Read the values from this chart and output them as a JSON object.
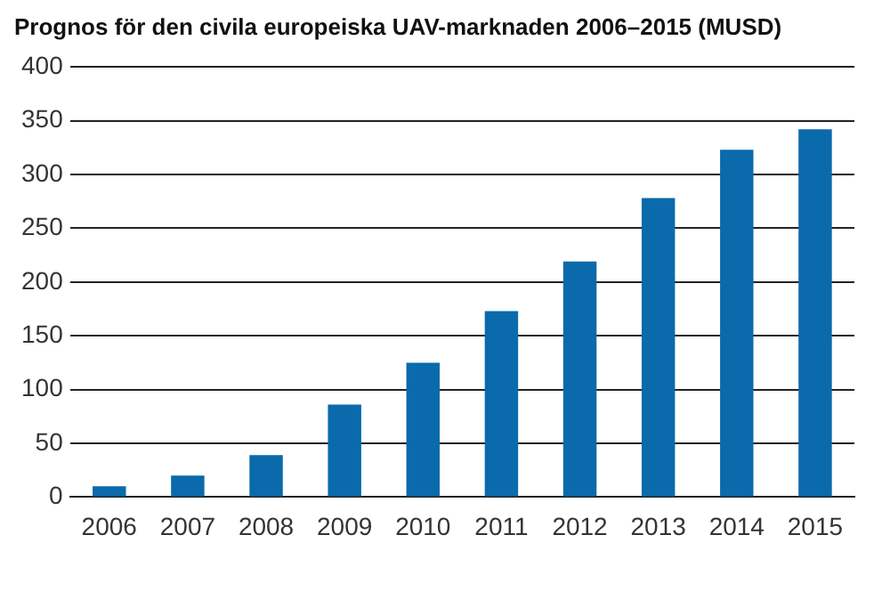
{
  "chart_data": {
    "type": "bar",
    "title": "Prognos för den civila europeiska UAV-marknaden 2006–2015 (MUSD)",
    "categories": [
      "2006",
      "2007",
      "2008",
      "2009",
      "2010",
      "2011",
      "2012",
      "2013",
      "2014",
      "2015"
    ],
    "values": [
      10,
      20,
      39,
      86,
      125,
      173,
      219,
      278,
      323,
      342
    ],
    "color": "#0a6aab",
    "ylim": [
      0,
      400
    ],
    "yticks": [
      0,
      50,
      100,
      150,
      200,
      250,
      300,
      350,
      400
    ],
    "grid": "y",
    "legend": false
  }
}
